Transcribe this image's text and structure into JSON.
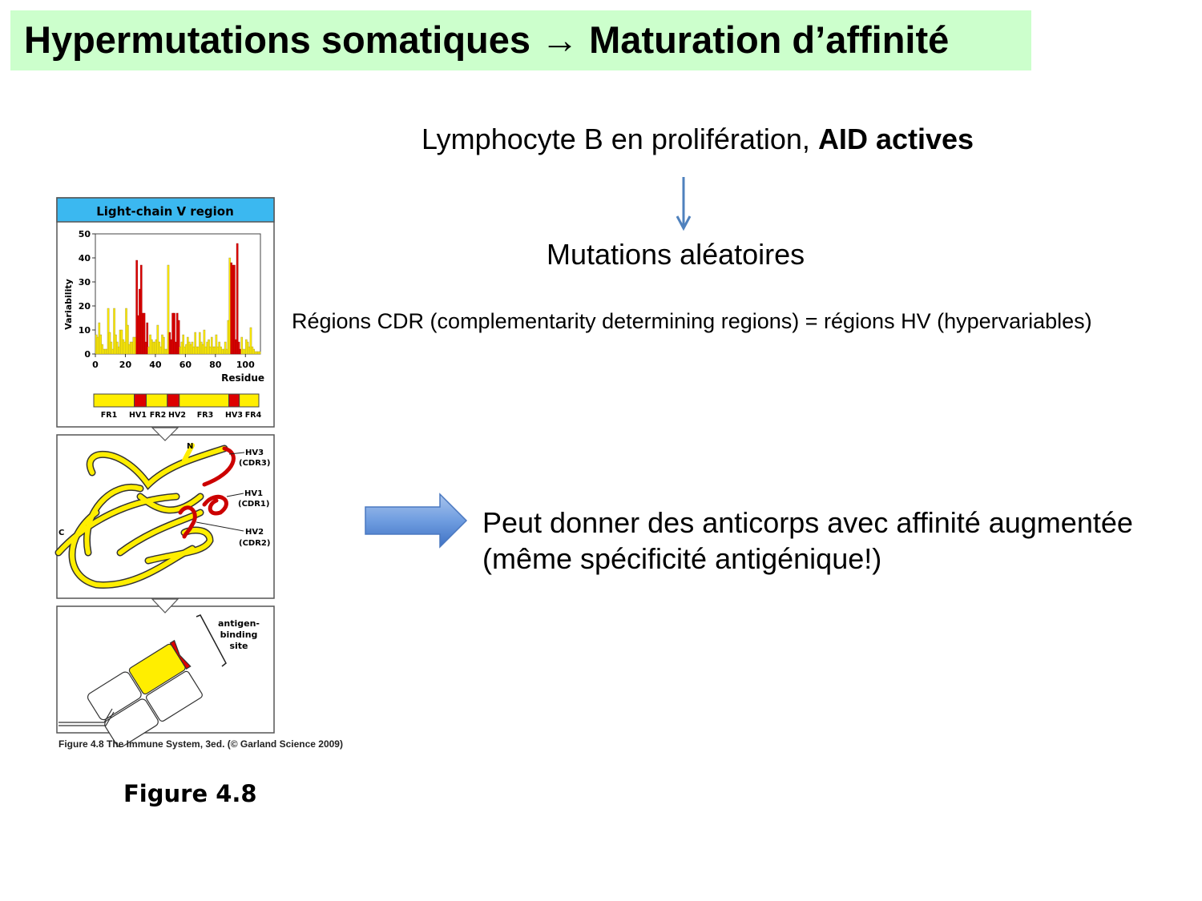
{
  "title": {
    "text": "Hypermutations somatiques",
    "arrow": "→",
    "text2": "Maturation d’affinité"
  },
  "main": {
    "line1_regular": "Lymphocyte B en prolifération, ",
    "line1_bold": "AID actives",
    "line2": "Mutations aléatoires",
    "line3": "Régions CDR (complementarity determining regions) = régions HV (hypervariables)",
    "line4a": "Peut donner des anticorps avec affinité augmentée",
    "line4b": "(même spécificité antigénique!)"
  },
  "figure": {
    "header": "Light-chain V region",
    "ylabel": "Variability",
    "xlabel": "Residue",
    "yticks": [
      "0",
      "10",
      "20",
      "30",
      "40",
      "50"
    ],
    "xticks": [
      "0",
      "20",
      "40",
      "60",
      "80",
      "100"
    ],
    "regions": [
      "FR1",
      "HV1",
      "FR2",
      "HV2",
      "FR3",
      "HV3",
      "FR4"
    ],
    "structure_labels": {
      "n": "N",
      "c": "C",
      "hv3": "HV3",
      "cdr3": "(CDR3)",
      "hv1": "HV1",
      "cdr1": "(CDR1)",
      "hv2": "HV2",
      "cdr2": "(CDR2)"
    },
    "binding_label": [
      "antigen-",
      "binding",
      "site"
    ],
    "caption": "Figure 4.8  The Immune System, 3ed. (© Garland Science 2009)",
    "label": "Figure 4.8",
    "colors": {
      "header": "#3bb8f0",
      "framework": "#ffee00",
      "hypervariable": "#dd0000",
      "title_band": "#ccffcc",
      "arrow": "#4f81bd"
    },
    "variability": [
      8,
      7,
      13,
      8,
      4,
      2,
      2,
      2,
      19,
      9,
      5,
      2,
      19,
      8,
      5,
      3,
      10,
      10,
      6,
      5,
      19,
      12,
      4,
      5,
      5,
      7,
      7,
      39,
      16,
      27,
      37,
      17,
      17,
      5,
      13,
      3,
      8,
      6,
      5,
      5,
      6,
      12,
      5,
      3,
      8,
      7,
      2,
      2,
      37,
      9,
      6,
      17,
      17,
      5,
      17,
      14,
      3,
      5,
      8,
      3,
      4,
      7,
      5,
      4,
      5,
      3,
      9,
      3,
      3,
      9,
      5,
      4,
      10,
      3,
      5,
      6,
      3,
      7,
      3,
      3,
      8,
      3,
      5,
      3,
      2,
      2,
      5,
      2,
      14,
      40,
      38,
      37,
      37,
      6,
      46,
      5,
      2,
      7,
      2,
      2,
      6,
      5,
      3,
      11,
      3,
      2,
      1,
      1,
      1,
      1
    ],
    "hv_ranges": [
      [
        28,
        35
      ],
      [
        50,
        56
      ],
      [
        91,
        97
      ]
    ]
  }
}
